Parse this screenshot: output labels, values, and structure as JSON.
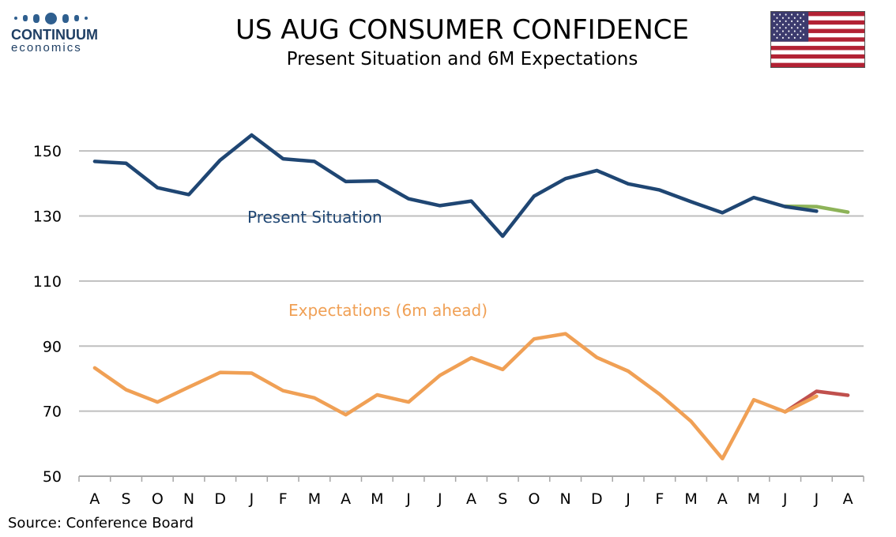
{
  "header": {
    "title": "US AUG CONSUMER CONFIDENCE",
    "subtitle": "Present Situation and 6M Expectations"
  },
  "logo": {
    "name": "CONTINUUM",
    "sub": "economics"
  },
  "flag_icon": "us-flag-icon",
  "source": "Source: Conference Board",
  "colors": {
    "present": "#1f4673",
    "expectations": "#f0a055",
    "present_revision": "#8db358",
    "expectations_revision": "#c0504d",
    "grid": "#bfbfbf"
  },
  "chart_data": {
    "type": "line",
    "categories": [
      "A",
      "S",
      "O",
      "N",
      "D",
      "J",
      "F",
      "M",
      "A",
      "M",
      "J",
      "J",
      "A",
      "S",
      "O",
      "N",
      "D",
      "J",
      "F",
      "M",
      "A",
      "M",
      "J",
      "J",
      "A"
    ],
    "ylim": [
      50,
      160
    ],
    "yticks": [
      50,
      70,
      90,
      110,
      130,
      150
    ],
    "grid": "horizontal",
    "series": [
      {
        "name": "Present Situation",
        "color": "#1f4673",
        "values": [
          146.8,
          146.2,
          138.7,
          136.6,
          147.2,
          154.9,
          147.6,
          146.8,
          140.6,
          140.8,
          135.3,
          133.2,
          134.6,
          123.8,
          136.1,
          141.5,
          144.0,
          139.9,
          138.0,
          134.4,
          131.0,
          135.7,
          132.9,
          131.5,
          null
        ]
      },
      {
        "name": "Expectations (6m ahead)",
        "color": "#f0a055",
        "values": [
          83.3,
          76.6,
          72.8,
          77.4,
          81.9,
          81.7,
          76.3,
          74.1,
          68.9,
          75.0,
          72.8,
          81.0,
          86.4,
          82.8,
          92.2,
          93.8,
          86.5,
          82.3,
          75.2,
          66.9,
          55.4,
          73.5,
          69.8,
          74.6,
          null
        ]
      },
      {
        "color": "#8db358",
        "values": [
          null,
          null,
          null,
          null,
          null,
          null,
          null,
          null,
          null,
          null,
          null,
          null,
          null,
          null,
          null,
          null,
          null,
          null,
          null,
          null,
          null,
          null,
          133.0,
          132.9,
          131.2
        ]
      },
      {
        "color": "#c0504d",
        "values": [
          null,
          null,
          null,
          null,
          null,
          null,
          null,
          null,
          null,
          null,
          null,
          null,
          null,
          null,
          null,
          null,
          null,
          null,
          null,
          null,
          null,
          null,
          69.8,
          76.1,
          74.9
        ]
      }
    ],
    "annotations": [
      "Present Situation",
      "Expectations (6m ahead)"
    ]
  }
}
